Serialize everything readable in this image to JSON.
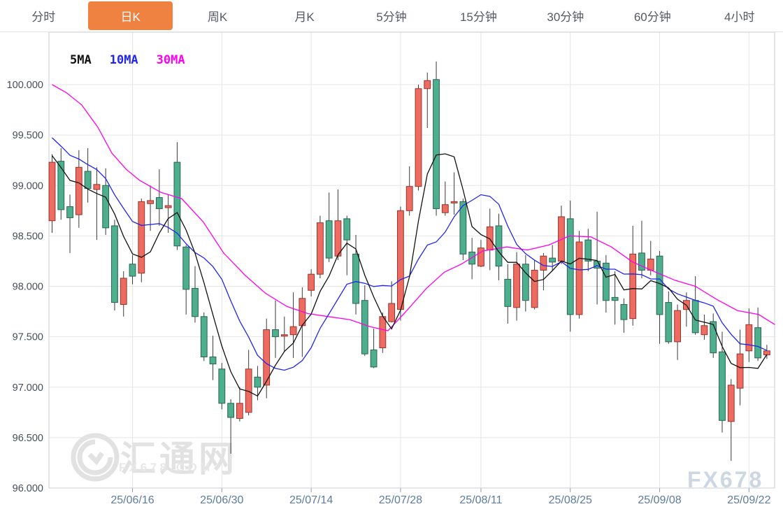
{
  "tabbar": {
    "active_index": 1,
    "items": [
      "分时",
      "日K",
      "周K",
      "月K",
      "5分钟",
      "15分钟",
      "30分钟",
      "60分钟",
      "4小时"
    ]
  },
  "legend": [
    {
      "label": "5MA",
      "color": "#111111"
    },
    {
      "label": "10MA",
      "color": "#2025f0"
    },
    {
      "label": "30MA",
      "color": "#ff00f0"
    }
  ],
  "watermark": {
    "site_name": "汇通网",
    "site_domain": "FX678.COM",
    "brand": "FX678"
  },
  "colors": {
    "up_candle": "#ee6b62",
    "up_border": "#93362e",
    "down_candle": "#4daf8e",
    "down_border": "#2c6351",
    "wick": "#3a3a3a",
    "grid": "#e5e5e5",
    "axis_border": "#c9ced6",
    "y_label": "#474e58",
    "x_label": "#5e7c9e",
    "active_tab": "#ef8240"
  },
  "chart_data": {
    "type": "candlestick",
    "title": "",
    "y_axis": {
      "min": 96.0,
      "max": 100.0,
      "step": 0.5,
      "tick_labels": [
        "100.000",
        "99.500",
        "99.000",
        "98.500",
        "98.000",
        "97.500",
        "97.000",
        "96.500",
        "96.000"
      ]
    },
    "x_axis": {
      "ticks": [
        {
          "label": "25/06/16",
          "i": 9
        },
        {
          "label": "25/06/30",
          "i": 19
        },
        {
          "label": "25/07/14",
          "i": 29
        },
        {
          "label": "25/07/28",
          "i": 39
        },
        {
          "label": "25/08/11",
          "i": 48
        },
        {
          "label": "25/08/25",
          "i": 58
        },
        {
          "label": "25/09/08",
          "i": 68
        },
        {
          "label": "25/09/22",
          "i": 78
        }
      ]
    },
    "series": {
      "candles": {
        "note": "each entry is [open, high, low, close]; close>=open renders red (up), else green (down)",
        "ohlc": [
          [
            98.65,
            99.31,
            98.53,
            99.23
          ],
          [
            99.24,
            99.37,
            98.66,
            98.76
          ],
          [
            98.79,
            98.91,
            98.33,
            98.68
          ],
          [
            98.71,
            99.35,
            98.58,
            99.18
          ],
          [
            99.14,
            99.37,
            98.83,
            98.97
          ],
          [
            98.96,
            99.18,
            98.46,
            99.01
          ],
          [
            99.0,
            99.17,
            98.51,
            98.58
          ],
          [
            98.6,
            98.66,
            97.76,
            97.84
          ],
          [
            97.82,
            98.15,
            97.7,
            98.08
          ],
          [
            98.22,
            98.31,
            98.02,
            98.1
          ],
          [
            98.13,
            98.87,
            98.04,
            98.84
          ],
          [
            98.82,
            99.0,
            98.55,
            98.85
          ],
          [
            98.88,
            99.16,
            98.6,
            98.77
          ],
          [
            98.78,
            98.91,
            98.53,
            98.8
          ],
          [
            99.23,
            99.43,
            98.36,
            98.4
          ],
          [
            98.39,
            98.41,
            97.72,
            97.97
          ],
          [
            97.98,
            98.2,
            97.64,
            97.7
          ],
          [
            97.7,
            97.74,
            97.26,
            97.3
          ],
          [
            97.3,
            97.51,
            97.07,
            97.23
          ],
          [
            97.18,
            97.24,
            96.78,
            96.84
          ],
          [
            96.84,
            96.88,
            96.34,
            96.7
          ],
          [
            96.69,
            97.0,
            96.66,
            96.84
          ],
          [
            96.75,
            97.37,
            96.72,
            97.18
          ],
          [
            97.1,
            97.21,
            96.87,
            97.0
          ],
          [
            97.02,
            97.68,
            96.89,
            97.57
          ],
          [
            97.57,
            97.86,
            97.29,
            97.5
          ],
          [
            97.51,
            97.7,
            97.35,
            97.52
          ],
          [
            97.52,
            97.94,
            97.29,
            97.6
          ],
          [
            97.61,
            97.99,
            97.3,
            97.88
          ],
          [
            97.96,
            98.17,
            97.9,
            98.12
          ],
          [
            98.12,
            98.7,
            98.08,
            98.63
          ],
          [
            98.65,
            98.93,
            98.24,
            98.28
          ],
          [
            98.3,
            98.96,
            98.26,
            98.65
          ],
          [
            98.67,
            98.7,
            98.11,
            98.46
          ],
          [
            98.32,
            98.51,
            97.72,
            97.83
          ],
          [
            97.86,
            98.01,
            97.31,
            97.33
          ],
          [
            97.37,
            97.58,
            97.19,
            97.2
          ],
          [
            97.39,
            97.74,
            97.34,
            97.7
          ],
          [
            97.65,
            98.05,
            97.64,
            97.83
          ],
          [
            97.77,
            98.79,
            97.66,
            98.75
          ],
          [
            98.75,
            99.19,
            98.7,
            98.99
          ],
          [
            98.99,
            100.0,
            98.95,
            99.96
          ],
          [
            99.96,
            100.12,
            99.57,
            100.04
          ],
          [
            100.05,
            100.23,
            98.7,
            98.77
          ],
          [
            98.73,
            99.04,
            98.7,
            98.81
          ],
          [
            98.83,
            99.13,
            98.71,
            98.84
          ],
          [
            98.84,
            98.87,
            98.26,
            98.32
          ],
          [
            98.34,
            98.48,
            98.07,
            98.22
          ],
          [
            98.2,
            98.46,
            98.19,
            98.38
          ],
          [
            98.36,
            98.77,
            98.16,
            98.59
          ],
          [
            98.6,
            98.72,
            98.06,
            98.2
          ],
          [
            98.07,
            98.22,
            97.63,
            97.8
          ],
          [
            97.79,
            98.34,
            97.66,
            98.22
          ],
          [
            98.22,
            98.31,
            97.75,
            97.86
          ],
          [
            97.79,
            98.26,
            97.77,
            98.16
          ],
          [
            98.16,
            98.33,
            97.96,
            98.3
          ],
          [
            98.28,
            98.41,
            98.15,
            98.24
          ],
          [
            98.25,
            98.8,
            98.22,
            98.69
          ],
          [
            98.67,
            98.85,
            97.55,
            97.72
          ],
          [
            97.72,
            98.55,
            97.68,
            98.44
          ],
          [
            98.46,
            98.57,
            98.15,
            98.25
          ],
          [
            98.25,
            98.74,
            97.82,
            98.18
          ],
          [
            98.23,
            98.31,
            97.74,
            97.86
          ],
          [
            97.89,
            98.15,
            97.62,
            97.86
          ],
          [
            97.82,
            97.88,
            97.54,
            97.67
          ],
          [
            97.68,
            98.6,
            97.61,
            98.32
          ],
          [
            98.33,
            98.65,
            98.08,
            98.16
          ],
          [
            98.16,
            98.45,
            98.11,
            98.27
          ],
          [
            98.3,
            98.35,
            97.43,
            97.72
          ],
          [
            97.84,
            97.95,
            97.43,
            97.45
          ],
          [
            97.45,
            97.82,
            97.27,
            97.76
          ],
          [
            97.77,
            97.94,
            97.6,
            97.86
          ],
          [
            97.86,
            98.1,
            97.52,
            97.54
          ],
          [
            97.52,
            97.72,
            97.47,
            97.61
          ],
          [
            97.65,
            97.73,
            97.29,
            97.34
          ],
          [
            97.35,
            97.55,
            96.55,
            96.67
          ],
          [
            96.66,
            97.08,
            96.27,
            97.02
          ],
          [
            96.99,
            97.57,
            96.82,
            97.33
          ],
          [
            97.36,
            97.78,
            97.25,
            97.62
          ],
          [
            97.59,
            97.79,
            97.26,
            97.29
          ],
          [
            97.32,
            97.42,
            97.28,
            97.36
          ]
        ]
      },
      "ma5": {
        "name": "5MA",
        "color": "#111111",
        "seed": [
          99.35,
          99.32,
          99.3,
          99.28
        ]
      },
      "ma10": {
        "name": "10MA",
        "color": "#2025f0",
        "seed": [
          99.6,
          99.58,
          99.55,
          99.52,
          99.5,
          99.48,
          99.45,
          99.42,
          99.4
        ]
      },
      "ma30": {
        "name": "30MA",
        "color": "#ff00f0",
        "points": [
          [
            0,
            100.0
          ],
          [
            1.6,
            99.92
          ],
          [
            3.3,
            99.8
          ],
          [
            5.1,
            99.58
          ],
          [
            6.7,
            99.32
          ],
          [
            8.3,
            99.16
          ],
          [
            9.8,
            99.05
          ],
          [
            12.2,
            98.93
          ],
          [
            14.5,
            98.87
          ],
          [
            16.9,
            98.64
          ],
          [
            19.2,
            98.33
          ],
          [
            21.6,
            98.11
          ],
          [
            23.9,
            97.93
          ],
          [
            26.3,
            97.8
          ],
          [
            28.6,
            97.73
          ],
          [
            30.9,
            97.7
          ],
          [
            33.3,
            97.67
          ],
          [
            35.6,
            97.6
          ],
          [
            37.6,
            97.56
          ],
          [
            39.5,
            97.74
          ],
          [
            41.9,
            97.98
          ],
          [
            43.9,
            98.14
          ],
          [
            45.8,
            98.22
          ],
          [
            48.2,
            98.35
          ],
          [
            50.9,
            98.39
          ],
          [
            53.2,
            98.36
          ],
          [
            55.6,
            98.41
          ],
          [
            57.9,
            98.5
          ],
          [
            60.3,
            98.49
          ],
          [
            62.6,
            98.39
          ],
          [
            65.0,
            98.24
          ],
          [
            67.3,
            98.15
          ],
          [
            69.7,
            98.06
          ],
          [
            72.0,
            98.0
          ],
          [
            74.4,
            97.87
          ],
          [
            76.7,
            97.76
          ],
          [
            79.1,
            97.72
          ],
          [
            80.9,
            97.62
          ]
        ]
      }
    }
  }
}
